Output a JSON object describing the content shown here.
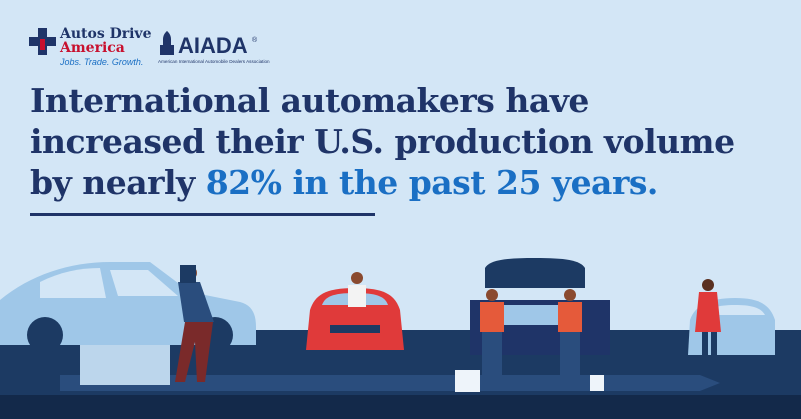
{
  "logos": {
    "autos_drive": {
      "line1": "Autos Drive",
      "line2": "America",
      "tagline": "Jobs. Trade. Growth."
    },
    "aiada": {
      "name": "AIADA",
      "mark": "®",
      "full_name": "American International Automobile Dealers Association"
    }
  },
  "headline": {
    "line1": "International automakers have",
    "line2": "increased their U.S. production volume",
    "line3_lead": "by nearly ",
    "line3_highlight": "82% in the past 25 years."
  }
}
